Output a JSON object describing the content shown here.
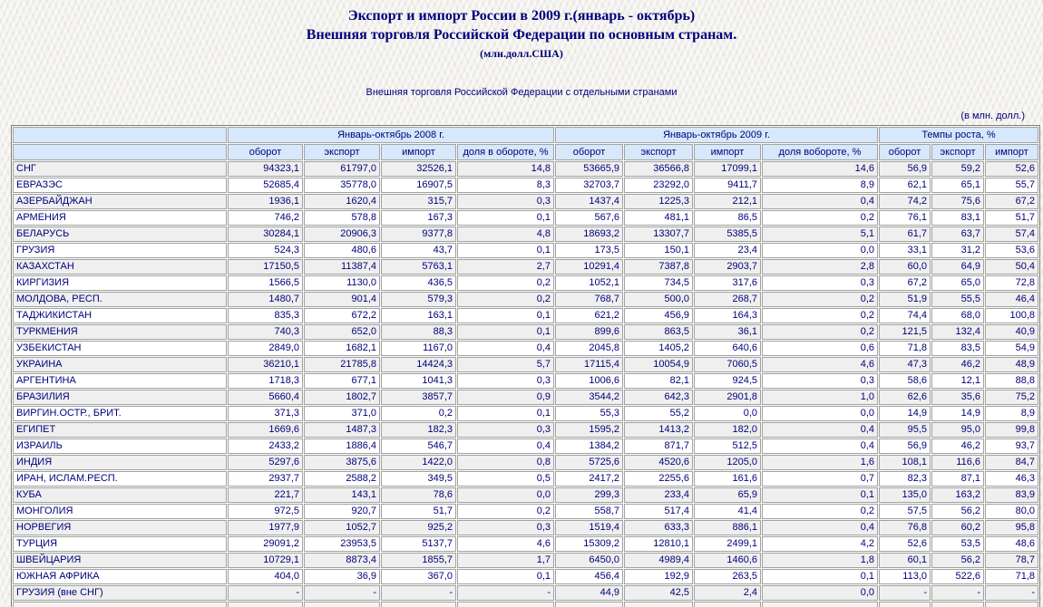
{
  "header": {
    "title_line1": "Экспорт и импорт России в 2009 г.(январь - октябрь)",
    "title_line2": "Внешняя торговля Российской Федерации по основным странам.",
    "title_line3": "(млн.долл.США)",
    "subtitle": "Внешняя торговля Российской Федерации с отдельными странами",
    "units_note": "(в млн. долл.)"
  },
  "colors": {
    "text_navy": "#00007B",
    "header_cell_bg": "#d6e8fa",
    "stripe_row_bg": "#efefef",
    "plain_row_bg": "#ffffff",
    "border_gray": "#a2a2a2"
  },
  "table": {
    "group_headers": [
      "Январь-октябрь 2008 г.",
      "Январь-октябрь 2009 г.",
      "Темпы роста, %"
    ],
    "col_headers_2008": [
      "оборот",
      "экспорт",
      "импорт",
      "доля в обороте, %"
    ],
    "col_headers_2009": [
      "оборот",
      "экспорт",
      "импорт",
      "доля вобороте, %"
    ],
    "col_headers_growth": [
      "оборот",
      "экспорт",
      "импорт"
    ],
    "rows": [
      {
        "name": "СНГ",
        "indent": 1,
        "values": [
          "94323,1",
          "61797,0",
          "32526,1",
          "14,8",
          "53665,9",
          "36566,8",
          "17099,1",
          "14,6",
          "56,9",
          "59,2",
          "52,6"
        ]
      },
      {
        "name": "ЕВРАЗЭС",
        "indent": 1,
        "values": [
          "52685,4",
          "35778,0",
          "16907,5",
          "8,3",
          "32703,7",
          "23292,0",
          "9411,7",
          "8,9",
          "62,1",
          "65,1",
          "55,7"
        ]
      },
      {
        "name": "АЗЕРБАЙДЖАН",
        "indent": 2,
        "values": [
          "1936,1",
          "1620,4",
          "315,7",
          "0,3",
          "1437,4",
          "1225,3",
          "212,1",
          "0,4",
          "74,2",
          "75,6",
          "67,2"
        ]
      },
      {
        "name": "АРМЕНИЯ",
        "indent": 2,
        "values": [
          "746,2",
          "578,8",
          "167,3",
          "0,1",
          "567,6",
          "481,1",
          "86,5",
          "0,2",
          "76,1",
          "83,1",
          "51,7"
        ]
      },
      {
        "name": "БЕЛАРУСЬ",
        "indent": 2,
        "values": [
          "30284,1",
          "20906,3",
          "9377,8",
          "4,8",
          "18693,2",
          "13307,7",
          "5385,5",
          "5,1",
          "61,7",
          "63,7",
          "57,4"
        ]
      },
      {
        "name": "ГРУЗИЯ",
        "indent": 2,
        "values": [
          "524,3",
          "480,6",
          "43,7",
          "0,1",
          "173,5",
          "150,1",
          "23,4",
          "0,0",
          "33,1",
          "31,2",
          "53,6"
        ]
      },
      {
        "name": "КАЗАХСТАН",
        "indent": 2,
        "values": [
          "17150,5",
          "11387,4",
          "5763,1",
          "2,7",
          "10291,4",
          "7387,8",
          "2903,7",
          "2,8",
          "60,0",
          "64,9",
          "50,4"
        ]
      },
      {
        "name": "КИРГИЗИЯ",
        "indent": 2,
        "values": [
          "1566,5",
          "1130,0",
          "436,5",
          "0,2",
          "1052,1",
          "734,5",
          "317,6",
          "0,3",
          "67,2",
          "65,0",
          "72,8"
        ]
      },
      {
        "name": "МОЛДОВА, РЕСП.",
        "indent": 2,
        "values": [
          "1480,7",
          "901,4",
          "579,3",
          "0,2",
          "768,7",
          "500,0",
          "268,7",
          "0,2",
          "51,9",
          "55,5",
          "46,4"
        ]
      },
      {
        "name": "ТАДЖИКИСТАН",
        "indent": 2,
        "values": [
          "835,3",
          "672,2",
          "163,1",
          "0,1",
          "621,2",
          "456,9",
          "164,3",
          "0,2",
          "74,4",
          "68,0",
          "100,8"
        ]
      },
      {
        "name": "ТУРКМЕНИЯ",
        "indent": 2,
        "values": [
          "740,3",
          "652,0",
          "88,3",
          "0,1",
          "899,6",
          "863,5",
          "36,1",
          "0,2",
          "121,5",
          "132,4",
          "40,9"
        ]
      },
      {
        "name": "УЗБЕКИСТАН",
        "indent": 2,
        "values": [
          "2849,0",
          "1682,1",
          "1167,0",
          "0,4",
          "2045,8",
          "1405,2",
          "640,6",
          "0,6",
          "71,8",
          "83,5",
          "54,9"
        ]
      },
      {
        "name": "УКРАИНА",
        "indent": 2,
        "values": [
          "36210,1",
          "21785,8",
          "14424,3",
          "5,7",
          "17115,4",
          "10054,9",
          "7060,5",
          "4,6",
          "47,3",
          "46,2",
          "48,9"
        ]
      },
      {
        "name": "АРГЕНТИНА",
        "indent": 2,
        "values": [
          "1718,3",
          "677,1",
          "1041,3",
          "0,3",
          "1006,6",
          "82,1",
          "924,5",
          "0,3",
          "58,6",
          "12,1",
          "88,8"
        ]
      },
      {
        "name": "БРАЗИЛИЯ",
        "indent": 2,
        "values": [
          "5660,4",
          "1802,7",
          "3857,7",
          "0,9",
          "3544,2",
          "642,3",
          "2901,8",
          "1,0",
          "62,6",
          "35,6",
          "75,2"
        ]
      },
      {
        "name": "ВИРГИН.ОСТР., БРИТ.",
        "indent": 2,
        "values": [
          "371,3",
          "371,0",
          "0,2",
          "0,1",
          "55,3",
          "55,2",
          "0,0",
          "0,0",
          "14,9",
          "14,9",
          "8,9"
        ]
      },
      {
        "name": "ЕГИПЕТ",
        "indent": 2,
        "values": [
          "1669,6",
          "1487,3",
          "182,3",
          "0,3",
          "1595,2",
          "1413,2",
          "182,0",
          "0,4",
          "95,5",
          "95,0",
          "99,8"
        ]
      },
      {
        "name": "ИЗРАИЛЬ",
        "indent": 2,
        "values": [
          "2433,2",
          "1886,4",
          "546,7",
          "0,4",
          "1384,2",
          "871,7",
          "512,5",
          "0,4",
          "56,9",
          "46,2",
          "93,7"
        ]
      },
      {
        "name": "ИНДИЯ",
        "indent": 2,
        "values": [
          "5297,6",
          "3875,6",
          "1422,0",
          "0,8",
          "5725,6",
          "4520,6",
          "1205,0",
          "1,6",
          "108,1",
          "116,6",
          "84,7"
        ]
      },
      {
        "name": "ИРАН, ИСЛАМ.РЕСП.",
        "indent": 2,
        "values": [
          "2937,7",
          "2588,2",
          "349,5",
          "0,5",
          "2417,2",
          "2255,6",
          "161,6",
          "0,7",
          "82,3",
          "87,1",
          "46,3"
        ]
      },
      {
        "name": "КУБА",
        "indent": 2,
        "values": [
          "221,7",
          "143,1",
          "78,6",
          "0,0",
          "299,3",
          "233,4",
          "65,9",
          "0,1",
          "135,0",
          "163,2",
          "83,9"
        ]
      },
      {
        "name": "МОНГОЛИЯ",
        "indent": 2,
        "values": [
          "972,5",
          "920,7",
          "51,7",
          "0,2",
          "558,7",
          "517,4",
          "41,4",
          "0,2",
          "57,5",
          "56,2",
          "80,0"
        ]
      },
      {
        "name": "НОРВЕГИЯ",
        "indent": 2,
        "values": [
          "1977,9",
          "1052,7",
          "925,2",
          "0,3",
          "1519,4",
          "633,3",
          "886,1",
          "0,4",
          "76,8",
          "60,2",
          "95,8"
        ]
      },
      {
        "name": "ТУРЦИЯ",
        "indent": 2,
        "values": [
          "29091,2",
          "23953,5",
          "5137,7",
          "4,6",
          "15309,2",
          "12810,1",
          "2499,1",
          "4,2",
          "52,6",
          "53,5",
          "48,6"
        ]
      },
      {
        "name": "ШВЕЙЦАРИЯ",
        "indent": 2,
        "values": [
          "10729,1",
          "8873,4",
          "1855,7",
          "1,7",
          "6450,0",
          "4989,4",
          "1460,6",
          "1,8",
          "60,1",
          "56,2",
          "78,7"
        ]
      },
      {
        "name": "ЮЖНАЯ АФРИКА",
        "indent": 2,
        "values": [
          "404,0",
          "36,9",
          "367,0",
          "0,1",
          "456,4",
          "192,9",
          "263,5",
          "0,1",
          "113,0",
          "522,6",
          "71,8"
        ]
      },
      {
        "name": "ГРУЗИЯ (вне СНГ)",
        "indent": 2,
        "values": [
          "-",
          "-",
          "-",
          "-",
          "44,9",
          "42,5",
          "2,4",
          "0,0",
          "-",
          "-",
          "-"
        ]
      }
    ]
  }
}
